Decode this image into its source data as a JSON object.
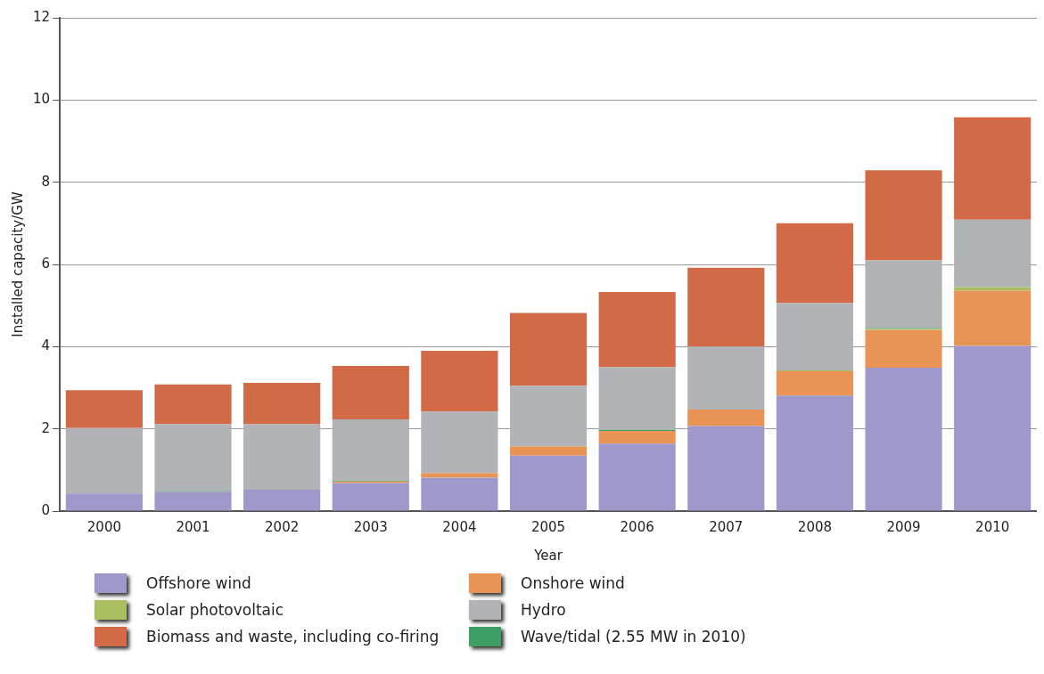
{
  "chart_data": {
    "type": "bar",
    "stacked": true,
    "xlabel": "Year",
    "ylabel": "Installed capacity/GW",
    "categories": [
      "2000",
      "2001",
      "2002",
      "2003",
      "2004",
      "2005",
      "2006",
      "2007",
      "2008",
      "2009",
      "2010"
    ],
    "series": [
      {
        "name": "Offshore wind",
        "color": "#9f98ca",
        "values": [
          0.43,
          0.47,
          0.52,
          0.68,
          0.81,
          1.35,
          1.64,
          2.07,
          2.81,
          3.49,
          4.02
        ]
      },
      {
        "name": "Onshore wind",
        "color": "#e99355",
        "values": [
          0,
          0,
          0,
          0.04,
          0.11,
          0.22,
          0.31,
          0.4,
          0.59,
          0.92,
          1.34
        ]
      },
      {
        "name": "Solar photovoltaic",
        "color": "#aabf62",
        "values": [
          0,
          0,
          0,
          0,
          0,
          0.01,
          0,
          0,
          0.02,
          0.02,
          0.09
        ]
      },
      {
        "name": "Wave/tidal (2.55 MW in 2010)",
        "color": "#3f9e63",
        "values": [
          0,
          0.02,
          0,
          0.02,
          0,
          0,
          0.02,
          0,
          0,
          0.02,
          null
        ]
      },
      {
        "name": "Hydro",
        "color": "#b2b3b6",
        "values": [
          1.59,
          1.63,
          1.59,
          1.49,
          1.5,
          1.47,
          1.53,
          1.53,
          1.64,
          1.65,
          1.64
        ]
      },
      {
        "name": "Biomass and waste, including co-firing",
        "color": "#d26a48",
        "values": [
          0.92,
          0.96,
          1.01,
          1.3,
          1.48,
          1.77,
          1.83,
          1.92,
          1.94,
          2.19,
          2.49
        ]
      }
    ],
    "ylim": [
      0,
      12
    ],
    "yticks": [
      0,
      2,
      4,
      6,
      8,
      10,
      12
    ],
    "grid": "y",
    "legend": "bottom"
  }
}
